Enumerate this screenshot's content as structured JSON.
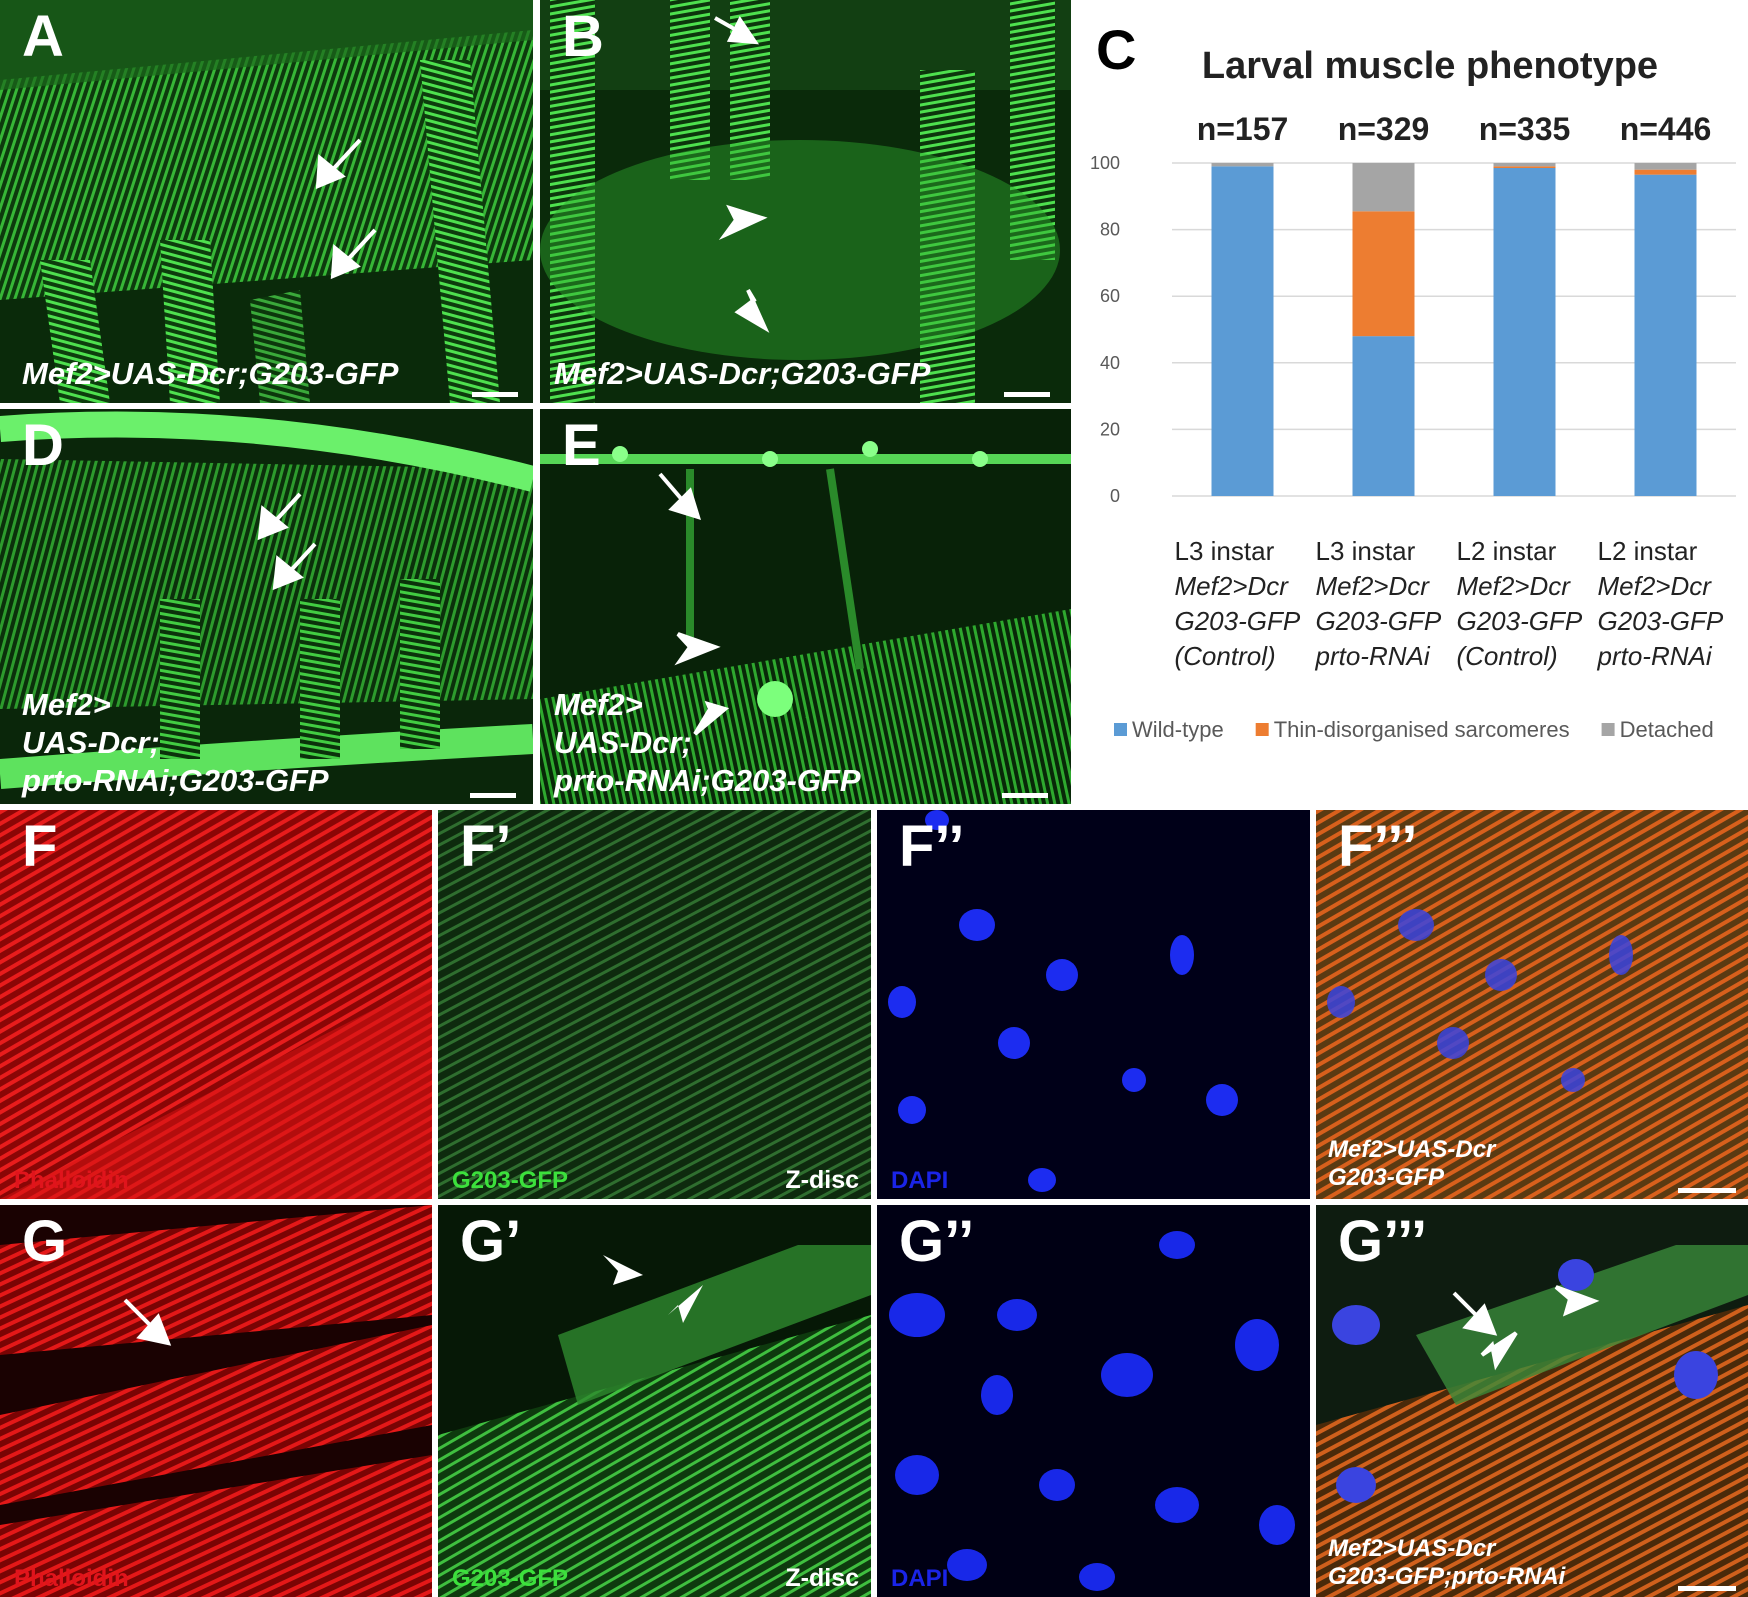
{
  "panels": {
    "A": {
      "letter": "A",
      "genotype": [
        "Mef2>UAS-Dcr;G203-GFP"
      ]
    },
    "B": {
      "letter": "B",
      "genotype": [
        "Mef2>UAS-Dcr;G203-GFP"
      ]
    },
    "D": {
      "letter": "D",
      "genotype": [
        "Mef2>",
        "UAS-Dcr;",
        "prto-RNAi;G203-GFP"
      ]
    },
    "E": {
      "letter": "E",
      "genotype": [
        "Mef2>",
        "UAS-Dcr;",
        "prto-RNAi;G203-GFP"
      ]
    },
    "F": {
      "letter": "F",
      "stain": "Phalloidin"
    },
    "F1": {
      "letter": "F’",
      "stain": "G203-GFP",
      "marker": "Z-disc"
    },
    "F2": {
      "letter": "F’’",
      "stain": "DAPI"
    },
    "F3": {
      "letter": "F’’’",
      "genotype": [
        "Mef2>UAS-Dcr",
        "G203-GFP"
      ]
    },
    "G": {
      "letter": "G",
      "stain": "Phalloidin"
    },
    "G1": {
      "letter": "G’",
      "stain": "G203-GFP",
      "marker": "Z-disc"
    },
    "G2": {
      "letter": "G’’",
      "stain": "DAPI"
    },
    "G3": {
      "letter": "G’’’",
      "genotype": [
        "Mef2>UAS-Dcr",
        "G203-GFP;prto-RNAi"
      ]
    }
  },
  "chart_panel": {
    "letter": "C"
  },
  "chart_data": {
    "type": "bar",
    "stacked": true,
    "title": "Larval muscle phenotype",
    "n_labels": [
      "n=157",
      "n=329",
      "n=335",
      "n=446"
    ],
    "categories": [
      {
        "stage": "L3 instar",
        "lines": [
          "Mef2>Dcr",
          "G203-GFP",
          "(Control)"
        ]
      },
      {
        "stage": "L3 instar",
        "lines": [
          "Mef2>Dcr",
          "G203-GFP",
          "prto-RNAi"
        ]
      },
      {
        "stage": "L2 instar",
        "lines": [
          "Mef2>Dcr",
          "G203-GFP",
          "(Control)"
        ]
      },
      {
        "stage": "L2 instar",
        "lines": [
          "Mef2>Dcr",
          "G203-GFP",
          "prto-RNAi"
        ]
      }
    ],
    "series": [
      {
        "name": "Wild-type",
        "color": "#5b9bd5",
        "values": [
          99,
          48,
          98.5,
          96.5
        ]
      },
      {
        "name": "Thin-disorganised sarcomeres",
        "color": "#ed7d31",
        "values": [
          0,
          37.5,
          0.5,
          1.5
        ]
      },
      {
        "name": "Detached",
        "color": "#a5a5a5",
        "values": [
          1,
          14.5,
          1,
          2
        ]
      }
    ],
    "ylim": [
      0,
      100
    ],
    "yticks": [
      0,
      20,
      40,
      60,
      80,
      100
    ],
    "legend_position": "bottom"
  }
}
